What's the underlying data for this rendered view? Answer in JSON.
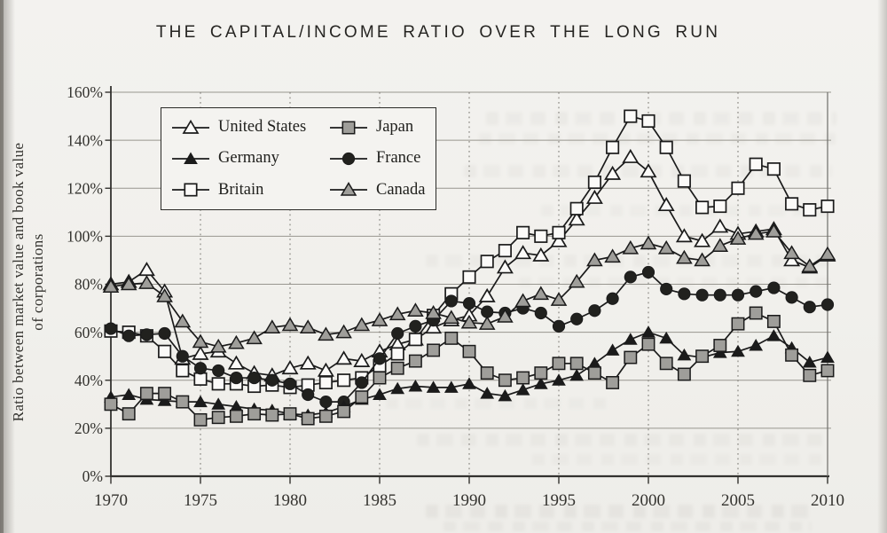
{
  "page": {
    "background": "#f1f0ec",
    "title": "THE CAPITAL/INCOME RATIO OVER THE LONG RUN"
  },
  "chart_data": {
    "type": "line",
    "title": "THE CAPITAL/INCOME RATIO OVER THE LONG RUN",
    "ylabel": [
      "Ratio between market value and book value",
      "of corporations"
    ],
    "xlim": [
      1970,
      2010
    ],
    "ylim": [
      0,
      160
    ],
    "x_start": 1970,
    "x_step": 1,
    "x_ticks": [
      1970,
      1975,
      1980,
      1985,
      1990,
      1995,
      2000,
      2005,
      2010
    ],
    "y_ticks": [
      0,
      20,
      40,
      60,
      80,
      100,
      120,
      140,
      160
    ],
    "y_tick_suffix": "%",
    "grid": {
      "horizontal": "solid",
      "vertical": "dotted"
    },
    "legend_position": "top-left-inside",
    "line_color": "#1b1b1b",
    "marker_colors": {
      "open": "#fbfaf8",
      "gray": "#9f9e9a",
      "solid": "#1b1b1b"
    },
    "legend_rows": [
      [
        "United States",
        "Japan"
      ],
      [
        "Germany",
        "France"
      ],
      [
        "Britain",
        "Canada"
      ]
    ],
    "paint_order": [
      "United States",
      "Britain",
      "France",
      "Germany",
      "Japan",
      "Canada"
    ],
    "series": [
      {
        "name": "United States",
        "marker": "triangle-open",
        "values": [
          80,
          81,
          86,
          77,
          49,
          51,
          52,
          47,
          43,
          42,
          45,
          47,
          44,
          49,
          48,
          52,
          55,
          57,
          62,
          65,
          67,
          75,
          87,
          93,
          92,
          98,
          107,
          116,
          126,
          133,
          127,
          113,
          100,
          98,
          104,
          101,
          102,
          103,
          90,
          87,
          92
        ]
      },
      {
        "name": "Japan",
        "marker": "square-gray",
        "values": [
          30,
          26,
          34.5,
          34.5,
          31,
          23.5,
          24.5,
          25,
          26,
          25.5,
          26,
          24,
          25,
          27,
          33,
          41,
          45,
          48,
          52.5,
          57.5,
          52,
          43,
          40,
          41,
          43,
          47,
          47,
          43,
          39,
          49.5,
          55,
          47,
          42.5,
          50,
          54.5,
          63.5,
          68,
          64.5,
          50.5,
          42,
          44
        ]
      },
      {
        "name": "Germany",
        "marker": "triangle-solid",
        "values": [
          33,
          34,
          32,
          31.5,
          31,
          31,
          30,
          29,
          28,
          27.5,
          26,
          25.5,
          26.5,
          29,
          32,
          34,
          36.5,
          37.5,
          37,
          37,
          38.5,
          34.5,
          33.5,
          36,
          38.5,
          40,
          42,
          47,
          52.5,
          57,
          60,
          57.5,
          50.5,
          49.5,
          51.5,
          52,
          54.5,
          58.5,
          53.5,
          47.5,
          49.5
        ]
      },
      {
        "name": "France",
        "marker": "circle-solid",
        "values": [
          61.5,
          58.5,
          59,
          59.5,
          50,
          45,
          44,
          41,
          41,
          40,
          38.5,
          34,
          31,
          31,
          39,
          49,
          59.5,
          62.5,
          65,
          73,
          72,
          68.5,
          68,
          70,
          68,
          62.5,
          65.5,
          69,
          74,
          83,
          85,
          78,
          76,
          75.5,
          75.5,
          75.5,
          77,
          78.5,
          74.5,
          70.5,
          71.5
        ]
      },
      {
        "name": "Britain",
        "marker": "square-open",
        "values": [
          60.5,
          60,
          58.5,
          52,
          44,
          40.5,
          38.5,
          38.5,
          37.5,
          38,
          37,
          38,
          39,
          40,
          41,
          46,
          51,
          57,
          67,
          76,
          83,
          89.5,
          94,
          101.5,
          100,
          101.5,
          111.5,
          122.5,
          137,
          150,
          148,
          137,
          123,
          112,
          112.5,
          120,
          130,
          128,
          113.5,
          111,
          112.5
        ]
      },
      {
        "name": "Canada",
        "marker": "triangle-gray",
        "values": [
          79,
          80,
          80.5,
          75,
          64.5,
          56,
          54,
          55.5,
          57.5,
          62,
          63,
          62,
          59,
          60,
          63,
          65,
          67.5,
          69,
          68,
          66,
          64,
          63.5,
          66.5,
          73,
          76,
          73.5,
          81,
          90,
          91.5,
          95,
          97,
          95,
          91,
          90,
          96,
          99,
          101,
          102,
          93,
          87.5,
          92.5
        ]
      }
    ]
  }
}
